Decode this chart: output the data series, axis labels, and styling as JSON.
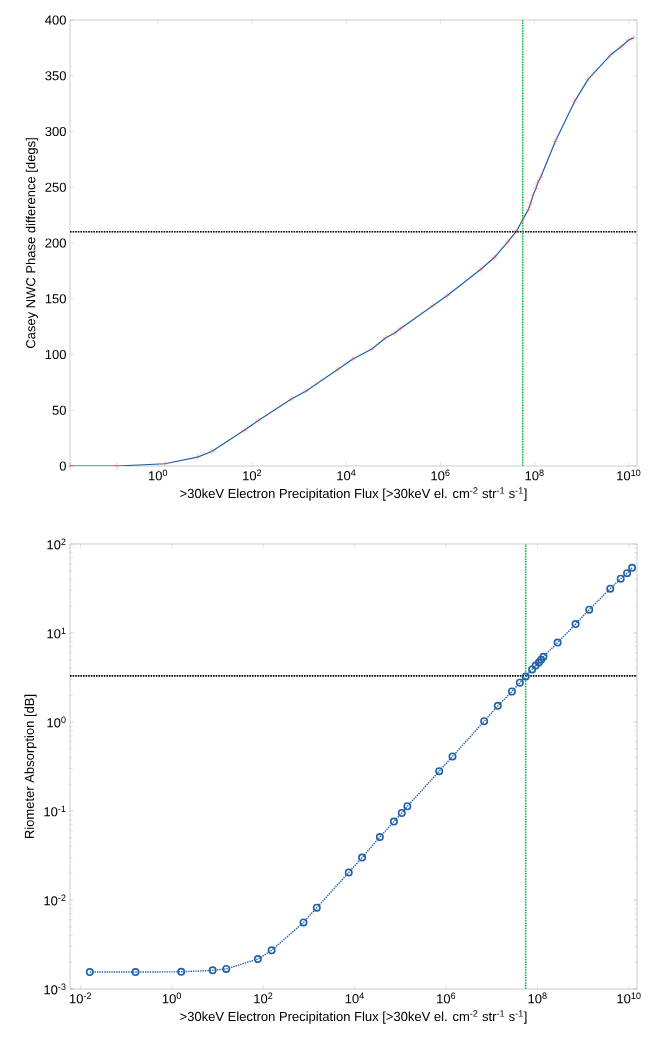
{
  "chart_data": [
    {
      "type": "line",
      "ylabel": "Casey NWC Phase difference [degs]",
      "xlabel": ">30keV Electron Precipitation Flux [>30keV el. cm$^{-2}$ str$^{-1}$ s$^{-1}$]",
      "log": "x",
      "grid": false,
      "xlim": [
        0.0135,
        15000000000.0
      ],
      "ylim": [
        0,
        400
      ],
      "xticks": [
        {
          "value": 1,
          "label": "10$^{0}$"
        },
        {
          "value": 100,
          "label": "10$^{2}$"
        },
        {
          "value": 10000,
          "label": "10$^{4}$"
        },
        {
          "value": 1000000,
          "label": "10$^{6}$"
        },
        {
          "value": 100000000,
          "label": "10$^{8}$"
        },
        {
          "value": 10000000000,
          "label": "10$^{10}$"
        }
      ],
      "yticks": [
        0,
        50,
        100,
        150,
        200,
        250,
        300,
        350,
        400
      ],
      "series": [
        {
          "color": "#1f5fa8",
          "marker": "cross",
          "line_style": "solid",
          "colors": [
            "#ff5a5a",
            "#ff5a5a",
            "#ff5a5a",
            "#ff5a5a",
            "#ff5a5a",
            "#ff5a5a",
            "#ff5a5a",
            "#ff5a5a",
            "#ff5a5a",
            "#ff5a5a",
            "#ff5a5a",
            "#ff5a5a",
            "#ff5a5a",
            "#ff5a5a",
            "#ff5a5a",
            "#ff5a5a",
            "#ff5a5a",
            "#ff5a5a",
            "#ff5a5a",
            "#ff5a5a",
            "#ff5a5a",
            "#ff5a5a",
            "#ff5a5a",
            "#ff5a5a",
            "#ff5a5a",
            "#ff5a5a",
            "#ff5a5a",
            "#ff5a5a",
            "#ff5a5a",
            "#ff5a5a",
            "#ff5a5a",
            "#ff5a5a",
            "#ff5a5a",
            "#ff5a5a",
            "#ff5a5a"
          ],
          "x": [
            0.0135,
            0.135,
            1.4,
            6.9,
            13.8,
            68,
            138,
            680,
            1380,
            6800,
            13800,
            35000,
            69000,
            105000,
            140000,
            700000,
            1400000.0,
            7000000.0,
            14000000.0,
            27000000.0,
            42000000.0,
            56000000.0,
            74000000.0,
            83000000.0,
            93000000.0,
            107000000.0,
            117000000.0,
            135000000.0,
            275000000.0,
            710000000.0,
            1380000000.0,
            4200000000.0,
            6900000000.0,
            10000000000.0,
            12600000000.0
          ],
          "values": [
            0,
            0,
            2,
            8,
            13,
            32,
            41,
            60,
            67,
            87,
            96,
            105,
            115,
            119,
            123,
            144,
            153,
            176,
            187,
            201,
            211,
            221,
            230,
            236,
            243,
            249,
            254,
            259,
            291,
            327,
            347,
            369,
            376,
            382,
            384
          ]
        }
      ],
      "ref_lines": [
        {
          "axis": "y",
          "value": 210,
          "color": "#000000",
          "line_style": "dotted"
        },
        {
          "axis": "x",
          "value": 56000000.0,
          "color": "#00c040",
          "line_style": "dotted"
        }
      ]
    },
    {
      "type": "line",
      "ylabel": "Riometer Absorption [dB]",
      "xlabel": ">30keV Electron Precipitation Flux [>30keV el. cm$^{-2}$ str$^{-1}$ s$^{-1}$]",
      "log": "xy",
      "grid": false,
      "xlim": [
        0.0059,
        15000000000.0
      ],
      "ylim": [
        0.001,
        100
      ],
      "xticks": [
        {
          "value": 0.01,
          "label": "10$^{-2}$"
        },
        {
          "value": 1,
          "label": "10$^{0}$"
        },
        {
          "value": 100,
          "label": "10$^{2}$"
        },
        {
          "value": 10000,
          "label": "10$^{4}$"
        },
        {
          "value": 1000000,
          "label": "10$^{6}$"
        },
        {
          "value": 100000000,
          "label": "10$^{8}$"
        },
        {
          "value": 10000000000,
          "label": "10$^{10}$"
        }
      ],
      "yticks": [
        {
          "value": 0.001,
          "label": "10$^{-3}$"
        },
        {
          "value": 0.01,
          "label": "10$^{-2}$"
        },
        {
          "value": 0.1,
          "label": "10$^{-1}$"
        },
        {
          "value": 1,
          "label": "10$^{0}$"
        },
        {
          "value": 10,
          "label": "10$^{1}$"
        },
        {
          "value": 100,
          "label": "10$^{2}$"
        }
      ],
      "series": [
        {
          "color": "#2060a8",
          "marker": "circle",
          "line_style": "dotted",
          "x": [
            0.016,
            0.16,
            1.6,
            7.8,
            15.5,
            76,
            152,
            760,
            1480,
            7400,
            14500,
            35500,
            72000,
            107000,
            142000,
            705000,
            1380000.0,
            6800000.0,
            13500000.0,
            27500000.0,
            41000000.0,
            55000000.0,
            76000000.0,
            91000000.0,
            107000000.0,
            120000000.0,
            135000000.0,
            275000000.0,
            680000000.0,
            1350000000.0,
            3900000000.0,
            6600000000.0,
            9100000000.0,
            11700000000.0
          ],
          "values": [
            0.00155,
            0.00155,
            0.00156,
            0.00162,
            0.00168,
            0.00217,
            0.00272,
            0.0056,
            0.0082,
            0.0204,
            0.03,
            0.051,
            0.076,
            0.095,
            0.113,
            0.28,
            0.41,
            1.02,
            1.52,
            2.2,
            2.76,
            3.24,
            3.9,
            4.3,
            4.65,
            5.0,
            5.4,
            7.8,
            12.6,
            18.3,
            31.5,
            40.8,
            47,
            54
          ]
        }
      ],
      "ref_lines": [
        {
          "axis": "y",
          "value": 3.3,
          "color": "#000000",
          "line_style": "dotted"
        },
        {
          "axis": "x",
          "value": 55000000.0,
          "color": "#00c040",
          "line_style": "dotted"
        }
      ]
    }
  ]
}
